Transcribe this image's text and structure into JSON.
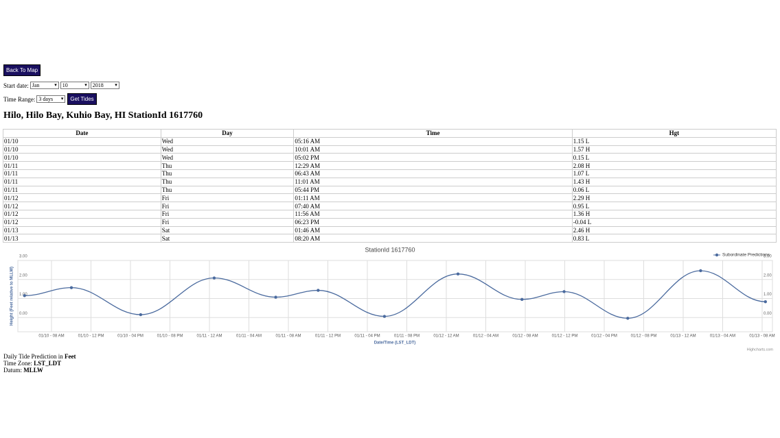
{
  "nav": {
    "back_button": "Back To Map",
    "start_date_label": "Start date:",
    "month": "Jan",
    "day": "10",
    "year": "2018",
    "time_range_label": "Time Range:",
    "time_range": "3 days",
    "get_button": "Get Tides"
  },
  "heading": "Hilo, Hilo Bay, Kuhio Bay, HI StationId 1617760",
  "table": {
    "columns": [
      "Date",
      "Day",
      "Time",
      "Hgt"
    ],
    "rows": [
      [
        "01/10",
        "Wed",
        "05:16 AM",
        "1.15 L"
      ],
      [
        "01/10",
        "Wed",
        "10:01 AM",
        "1.57 H"
      ],
      [
        "01/10",
        "Wed",
        "05:02 PM",
        "0.15 L"
      ],
      [
        "01/11",
        "Thu",
        "12:29 AM",
        "2.08 H"
      ],
      [
        "01/11",
        "Thu",
        "06:43 AM",
        "1.07 L"
      ],
      [
        "01/11",
        "Thu",
        "11:01 AM",
        "1.43 H"
      ],
      [
        "01/11",
        "Thu",
        "05:44 PM",
        "0.06 L"
      ],
      [
        "01/12",
        "Fri",
        "01:11 AM",
        "2.29 H"
      ],
      [
        "01/12",
        "Fri",
        "07:40 AM",
        "0.95 L"
      ],
      [
        "01/12",
        "Fri",
        "11:56 AM",
        "1.36 H"
      ],
      [
        "01/12",
        "Fri",
        "06:23 PM",
        "-0.04 L"
      ],
      [
        "01/13",
        "Sat",
        "01:46 AM",
        "2.46 H"
      ],
      [
        "01/13",
        "Sat",
        "08:20 AM",
        "0.83 L"
      ]
    ]
  },
  "chart_data": {
    "type": "line",
    "title": "StationId 1617760",
    "y_label": "Height (Feet relative to MLLW)",
    "x_label": "Date/Time (LST_LDT)",
    "credits": "Highcharts.com",
    "legend": "top-right",
    "grid": true,
    "series": [
      {
        "name": "Subordinate Predictions",
        "color": "#4a6a9e",
        "x": [
          "01/10 05:16 AM",
          "01/10 10:01 AM",
          "01/10 05:02 PM",
          "01/11 12:29 AM",
          "01/11 06:43 AM",
          "01/11 11:01 AM",
          "01/11 05:44 PM",
          "01/12 01:11 AM",
          "01/12 07:40 AM",
          "01/12 11:56 AM",
          "01/12 06:23 PM",
          "01/13 01:46 AM",
          "01/13 08:20 AM"
        ],
        "values": [
          1.15,
          1.57,
          0.15,
          2.08,
          1.07,
          1.43,
          0.06,
          2.29,
          0.95,
          1.36,
          -0.04,
          2.46,
          0.83
        ]
      }
    ],
    "xticks": [
      "01/10 - 08 AM",
      "01/10 - 12 PM",
      "01/10 - 04 PM",
      "01/10 - 08 PM",
      "01/11 - 12 AM",
      "01/11 - 04 AM",
      "01/11 - 08 AM",
      "01/11 - 12 PM",
      "01/11 - 04 PM",
      "01/11 - 08 PM",
      "01/12 - 12 AM",
      "01/12 - 04 AM",
      "01/12 - 08 AM",
      "01/12 - 12 PM",
      "01/12 - 04 PM",
      "01/12 - 08 PM",
      "01/13 - 12 AM",
      "01/13 - 04 AM",
      "01/13 - 08 AM"
    ],
    "ylim": [
      -0.75,
      3
    ],
    "yticks": [
      {
        "value": 0,
        "label": "0.00"
      },
      {
        "value": 1,
        "label": "1.00"
      },
      {
        "value": 2,
        "label": "2.00"
      },
      {
        "value": 3,
        "label": "3.00"
      }
    ]
  },
  "footer": {
    "line1_text": "Daily Tide Prediction in",
    "line1_bold": "Feet",
    "line2_text": "Time Zone:",
    "line2_bold": "LST_LDT",
    "line3_text": "Datum:",
    "line3_bold": "MLLW"
  }
}
